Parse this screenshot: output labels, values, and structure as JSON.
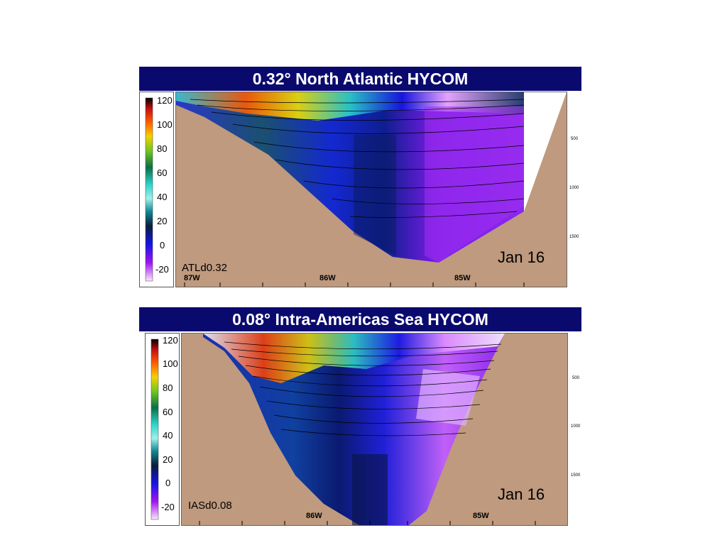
{
  "panels": [
    {
      "title": "0.32° North Atlantic HYCOM",
      "run_label": "ATLd0.32",
      "date": "Jan 16",
      "colorbar_ticks": [
        "120",
        "100",
        "80",
        "60",
        "40",
        "20",
        "0",
        "-20"
      ],
      "longitudes": [
        "87W",
        "86W",
        "85W"
      ],
      "depths": [
        "500",
        "1000",
        "1500"
      ]
    },
    {
      "title": "0.08° Intra-Americas Sea HYCOM",
      "run_label": "IASd0.08",
      "date": "Jan 16",
      "colorbar_ticks": [
        "120",
        "100",
        "80",
        "60",
        "40",
        "20",
        "0",
        "-20"
      ],
      "longitudes": [
        "86W",
        "85W"
      ],
      "depths": [
        "500",
        "1000",
        "1500"
      ]
    }
  ],
  "colors": {
    "title_bg": "#0a0a6e",
    "land": "#bf9a7e"
  }
}
